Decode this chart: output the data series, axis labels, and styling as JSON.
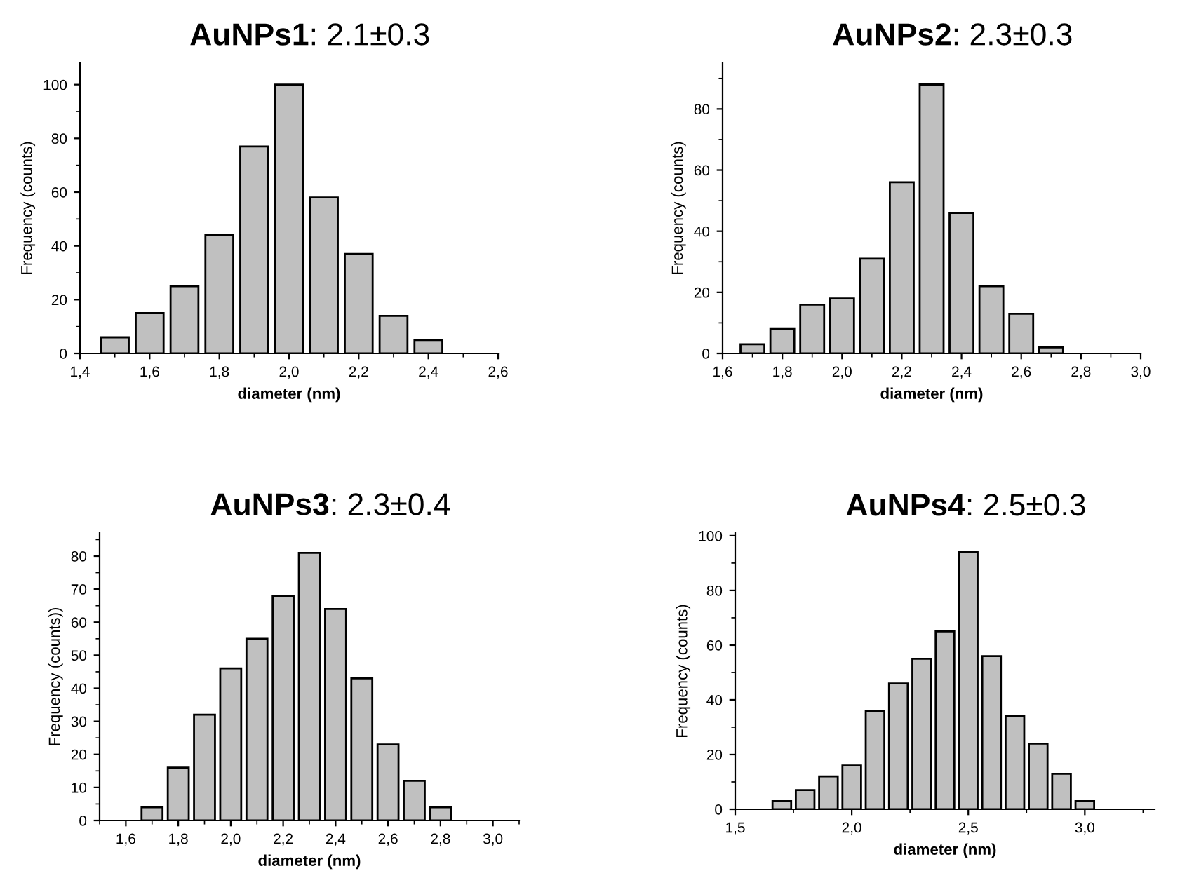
{
  "chart_data": [
    {
      "type": "histogram",
      "title": "AuNPs1: 2.1±0.3",
      "xlabel": "diameter (nm)",
      "ylabel": "Frequency (counts)",
      "color": "#c0c0c0",
      "bins": [
        1.45,
        1.55,
        1.65,
        1.75,
        1.85,
        1.95,
        2.05,
        2.15,
        2.25,
        2.35,
        2.45
      ],
      "values": [
        6,
        15,
        25,
        44,
        77,
        100,
        58,
        37,
        14,
        5
      ],
      "xlim": [
        1.4,
        2.6
      ],
      "xticks": [
        {
          "value": 1.4,
          "label": "1,4"
        },
        {
          "value": 1.6,
          "label": "1,6"
        },
        {
          "value": 1.8,
          "label": "1,8"
        },
        {
          "value": 2.0,
          "label": "2,0"
        },
        {
          "value": 2.2,
          "label": "2,2"
        },
        {
          "value": 2.4,
          "label": "2,4"
        },
        {
          "value": 2.6,
          "label": "2,6"
        }
      ],
      "ylim": [
        0,
        108
      ],
      "yticks": [
        0,
        20,
        40,
        60,
        80,
        100
      ]
    },
    {
      "type": "histogram",
      "title": "AuNPs2: 2.3±0.3",
      "xlabel": "diameter (nm)",
      "ylabel": "Frequency (counts)",
      "color": "#c0c0c0",
      "bins": [
        1.65,
        1.75,
        1.85,
        1.95,
        2.05,
        2.15,
        2.25,
        2.35,
        2.45,
        2.55,
        2.65,
        2.75
      ],
      "values": [
        3,
        8,
        16,
        18,
        31,
        56,
        88,
        46,
        22,
        13,
        2
      ],
      "xlim": [
        1.6,
        3.0
      ],
      "xticks": [
        {
          "value": 1.6,
          "label": "1,6"
        },
        {
          "value": 1.8,
          "label": "1,8"
        },
        {
          "value": 2.0,
          "label": "2,0"
        },
        {
          "value": 2.2,
          "label": "2,2"
        },
        {
          "value": 2.4,
          "label": "2,4"
        },
        {
          "value": 2.6,
          "label": "2,6"
        },
        {
          "value": 2.8,
          "label": "2,8"
        },
        {
          "value": 3.0,
          "label": "3,0"
        }
      ],
      "ylim": [
        0,
        95
      ],
      "yticks": [
        0,
        20,
        40,
        60,
        80
      ]
    },
    {
      "type": "histogram",
      "title": "AuNPs3: 2.3±0.4",
      "xlabel": "diameter (nm)",
      "ylabel": "Frequency (counts))",
      "color": "#c0c0c0",
      "bins": [
        1.65,
        1.75,
        1.85,
        1.95,
        2.05,
        2.15,
        2.25,
        2.35,
        2.45,
        2.55,
        2.65,
        2.75,
        2.85
      ],
      "values": [
        4,
        16,
        32,
        46,
        55,
        68,
        81,
        64,
        43,
        23,
        12,
        4
      ],
      "xlim": [
        1.5,
        3.1
      ],
      "xticks": [
        {
          "value": 1.6,
          "label": "1,6"
        },
        {
          "value": 1.8,
          "label": "1,8"
        },
        {
          "value": 2.0,
          "label": "2,0"
        },
        {
          "value": 2.2,
          "label": "2,2"
        },
        {
          "value": 2.4,
          "label": "2,4"
        },
        {
          "value": 2.6,
          "label": "2,6"
        },
        {
          "value": 2.8,
          "label": "2,8"
        },
        {
          "value": 3.0,
          "label": "3,0"
        }
      ],
      "ylim": [
        0,
        87
      ],
      "yticks": [
        0,
        10,
        20,
        30,
        40,
        50,
        60,
        70,
        80
      ]
    },
    {
      "type": "histogram",
      "title": "AuNPs4: 2.5±0.3",
      "xlabel": "diameter (nm)",
      "ylabel": "Frequency (counts)",
      "color": "#c0c0c0",
      "bins": [
        1.65,
        1.75,
        1.85,
        1.95,
        2.05,
        2.15,
        2.25,
        2.35,
        2.45,
        2.55,
        2.65,
        2.75,
        2.85,
        2.95,
        3.05
      ],
      "values": [
        3,
        7,
        12,
        16,
        36,
        46,
        55,
        65,
        94,
        56,
        34,
        24,
        13,
        3
      ],
      "xlim": [
        1.5,
        3.3
      ],
      "xticks": [
        {
          "value": 1.5,
          "label": "1,5"
        },
        {
          "value": 2.0,
          "label": "2,0"
        },
        {
          "value": 2.5,
          "label": "2,5"
        },
        {
          "value": 3.0,
          "label": "3,0"
        }
      ],
      "ylim": [
        0,
        101
      ],
      "yticks": [
        0,
        20,
        40,
        60,
        80,
        100
      ]
    }
  ]
}
